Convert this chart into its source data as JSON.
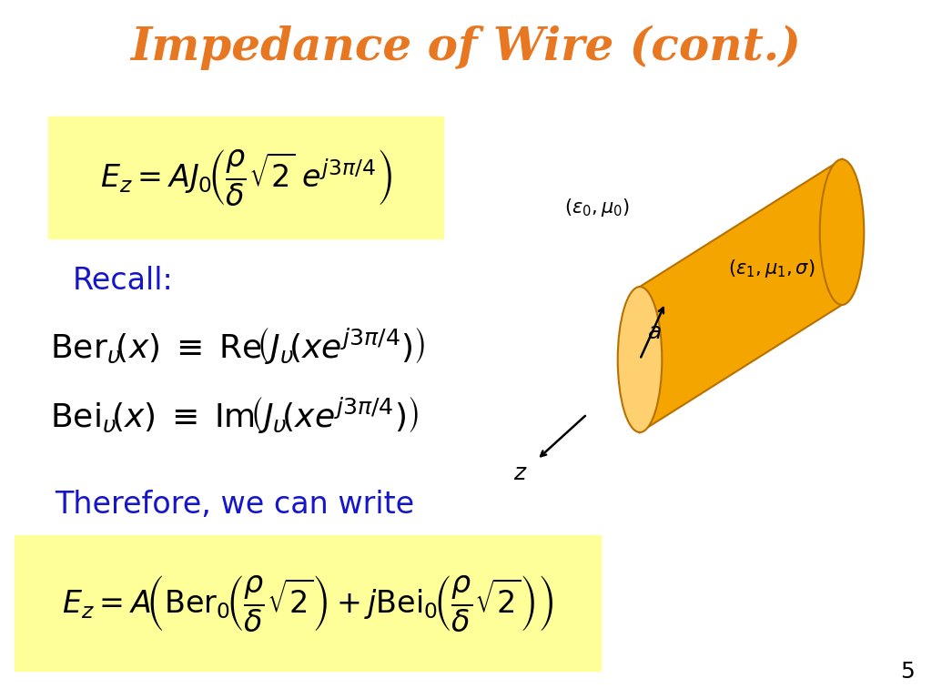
{
  "title": "Impedance of Wire (cont.)",
  "title_color": "#E87722",
  "title_fontsize": 36,
  "bg_color": "#FFFFFF",
  "yellow_bg": "#FFFF99",
  "blue_text": "#1515CC",
  "black_text": "#000000",
  "slide_number": "5",
  "orange_body": "#F5A500",
  "orange_face": "#FFD070",
  "orange_edge": "#B87000"
}
